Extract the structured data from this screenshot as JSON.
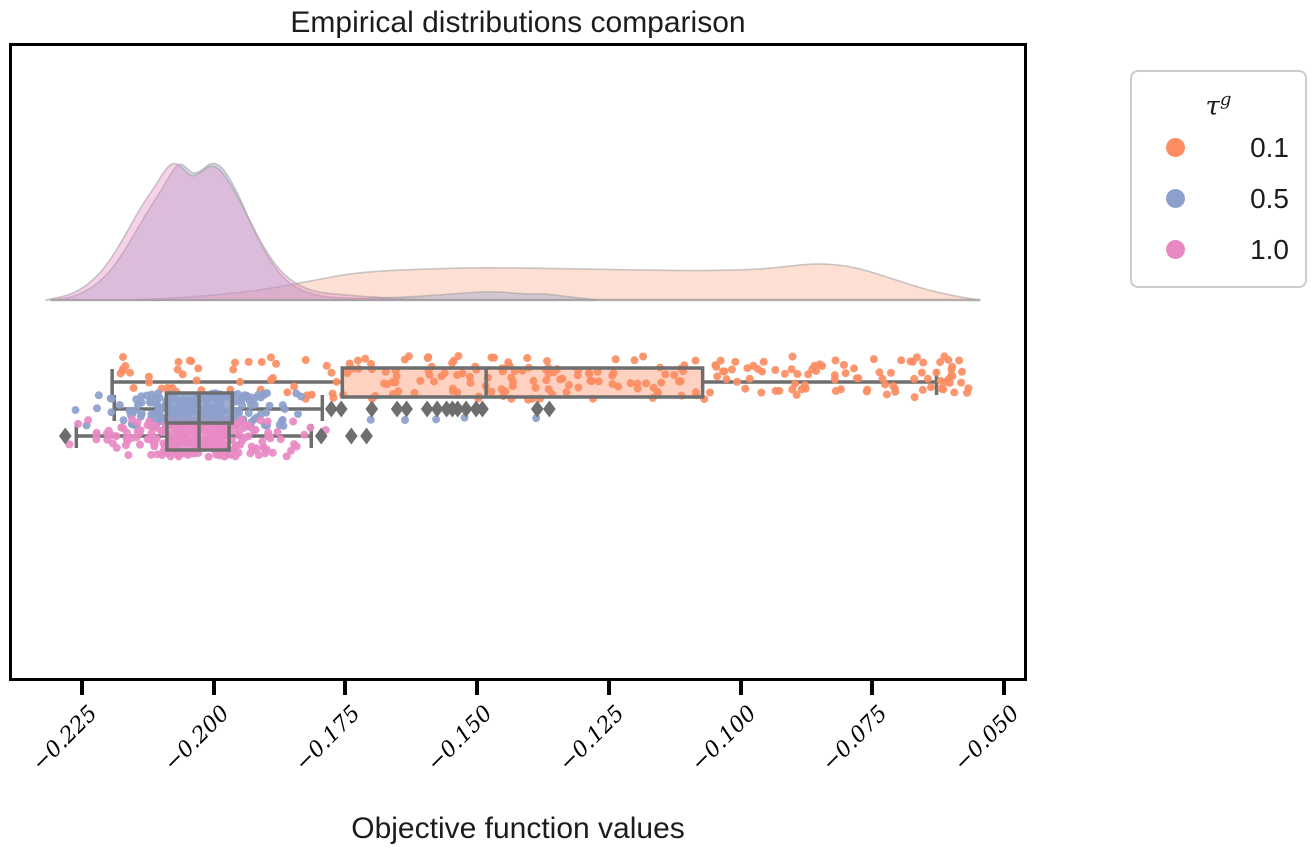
{
  "figure": {
    "title": "Empirical distributions comparison",
    "xlabel": "Objective function values"
  },
  "legend": {
    "title_base": "τ",
    "title_sup": "g",
    "items": [
      {
        "label": "0.1",
        "color": "#FC8D62"
      },
      {
        "label": "0.5",
        "color": "#8DA0CB"
      },
      {
        "label": "1.0",
        "color": "#E78AC3"
      }
    ]
  },
  "chart_data": {
    "type": "raincloud (kde + box + strip)",
    "title": "Empirical distributions comparison",
    "xlabel": "Objective function values",
    "xlim": [
      -0.2385,
      -0.046
    ],
    "x_ticks": [
      -0.225,
      -0.2,
      -0.175,
      -0.15,
      -0.125,
      -0.1,
      -0.075,
      -0.05
    ],
    "x_tick_labels": [
      "−0.225",
      "−0.200",
      "−0.175",
      "−0.150",
      "−0.125",
      "−0.100",
      "−0.075",
      "−0.050"
    ],
    "grid": false,
    "legend_position": "outside-right",
    "flier_marker": "diamond",
    "styles": {
      "box_edge_color": "#6e6e6e",
      "flier_color": "#6e6e6e",
      "kde_stroke_color": "#9e9e9e",
      "baseline_color": "#bdbdbd",
      "frame_color": "#000000"
    },
    "baseline_extent": [
      -0.231,
      -0.0545
    ],
    "groups": [
      {
        "name": "0.1",
        "color": "#FC8D62",
        "kde_fill": "rgba(252,141,98,0.28)",
        "box_fill": "rgba(252,141,98,0.40)",
        "box": {
          "whislo": -0.2193,
          "q1": -0.1756,
          "med": -0.1483,
          "q3": -0.1072,
          "whishi": -0.0628,
          "fliers": []
        },
        "kde": [
          [
            -0.215,
            0
          ],
          [
            -0.21,
            0.01
          ],
          [
            -0.205,
            0.02
          ],
          [
            -0.2,
            0.035
          ],
          [
            -0.195,
            0.055
          ],
          [
            -0.19,
            0.08
          ],
          [
            -0.185,
            0.115
          ],
          [
            -0.18,
            0.15
          ],
          [
            -0.176,
            0.18
          ],
          [
            -0.172,
            0.2
          ],
          [
            -0.167,
            0.215
          ],
          [
            -0.16,
            0.225
          ],
          [
            -0.152,
            0.235
          ],
          [
            -0.144,
            0.235
          ],
          [
            -0.136,
            0.23
          ],
          [
            -0.128,
            0.225
          ],
          [
            -0.12,
            0.22
          ],
          [
            -0.112,
            0.215
          ],
          [
            -0.104,
            0.215
          ],
          [
            -0.096,
            0.225
          ],
          [
            -0.09,
            0.25
          ],
          [
            -0.086,
            0.265
          ],
          [
            -0.082,
            0.26
          ],
          [
            -0.078,
            0.235
          ],
          [
            -0.074,
            0.19
          ],
          [
            -0.07,
            0.14
          ],
          [
            -0.066,
            0.09
          ],
          [
            -0.062,
            0.05
          ],
          [
            -0.058,
            0.02
          ],
          [
            -0.0545,
            0
          ]
        ],
        "strip": {
          "count": 260,
          "segments": [
            {
              "lo": -0.2185,
              "hi": -0.176,
              "w": 0.18
            },
            {
              "lo": -0.176,
              "hi": -0.107,
              "w": 0.5
            },
            {
              "lo": -0.107,
              "hi": -0.0565,
              "w": 0.32
            }
          ],
          "extras": []
        }
      },
      {
        "name": "0.5",
        "color": "#8DA0CB",
        "kde_fill": "rgba(141,160,203,0.38)",
        "box_fill": "rgba(141,160,203,0.85)",
        "box": {
          "whislo": -0.2189,
          "q1": -0.209,
          "med": -0.2028,
          "q3": -0.1965,
          "whishi": -0.1794,
          "fliers": [
            -0.1777,
            -0.1758,
            -0.17,
            -0.1652,
            -0.1634,
            -0.1595,
            -0.1576,
            -0.1558,
            -0.1547,
            -0.1537,
            -0.1521,
            -0.1502,
            -0.149,
            -0.1386,
            -0.1363
          ]
        },
        "kde": [
          [
            -0.231,
            0
          ],
          [
            -0.228,
            0.01
          ],
          [
            -0.225,
            0.05
          ],
          [
            -0.222,
            0.12
          ],
          [
            -0.219,
            0.24
          ],
          [
            -0.216,
            0.42
          ],
          [
            -0.213,
            0.62
          ],
          [
            -0.21,
            0.8
          ],
          [
            -0.2085,
            0.9
          ],
          [
            -0.2073,
            0.97
          ],
          [
            -0.2063,
            1
          ],
          [
            -0.205,
            0.96
          ],
          [
            -0.204,
            0.92
          ],
          [
            -0.2025,
            0.94
          ],
          [
            -0.201,
            0.99
          ],
          [
            -0.1998,
            1
          ],
          [
            -0.1985,
            0.97
          ],
          [
            -0.197,
            0.89
          ],
          [
            -0.195,
            0.74
          ],
          [
            -0.193,
            0.56
          ],
          [
            -0.191,
            0.4
          ],
          [
            -0.189,
            0.27
          ],
          [
            -0.187,
            0.17
          ],
          [
            -0.185,
            0.105
          ],
          [
            -0.183,
            0.065
          ],
          [
            -0.181,
            0.04
          ],
          [
            -0.179,
            0.025
          ],
          [
            -0.176,
            0.015
          ],
          [
            -0.172,
            0.012
          ],
          [
            -0.168,
            0.015
          ],
          [
            -0.162,
            0.025
          ],
          [
            -0.156,
            0.04
          ],
          [
            -0.151,
            0.055
          ],
          [
            -0.147,
            0.062
          ],
          [
            -0.143,
            0.05
          ],
          [
            -0.14,
            0.042
          ],
          [
            -0.138,
            0.046
          ],
          [
            -0.136,
            0.04
          ],
          [
            -0.133,
            0.025
          ],
          [
            -0.13,
            0.012
          ],
          [
            -0.127,
            0
          ]
        ],
        "strip": {
          "count": 205,
          "mean": -0.2025,
          "sd": 0.0088,
          "clip": [
            -0.2285,
            -0.179
          ],
          "extras": [
            -0.1702,
            -0.1637,
            -0.1578,
            -0.1524,
            -0.1388
          ]
        }
      },
      {
        "name": "1.0",
        "color": "#E78AC3",
        "kde_fill": "rgba(231,138,195,0.38)",
        "box_fill": "rgba(231,138,195,0.85)",
        "box": {
          "whislo": -0.2261,
          "q1": -0.2089,
          "med": -0.2028,
          "q3": -0.1971,
          "whishi": -0.1815,
          "fliers": [
            -0.2282,
            -0.1796,
            -0.1739,
            -0.171
          ]
        },
        "kde": [
          [
            -0.232,
            0
          ],
          [
            -0.229,
            0.02
          ],
          [
            -0.226,
            0.06
          ],
          [
            -0.223,
            0.14
          ],
          [
            -0.22,
            0.27
          ],
          [
            -0.217,
            0.46
          ],
          [
            -0.214,
            0.67
          ],
          [
            -0.211,
            0.84
          ],
          [
            -0.2096,
            0.93
          ],
          [
            -0.2083,
            0.99
          ],
          [
            -0.2071,
            1
          ],
          [
            -0.2056,
            0.95
          ],
          [
            -0.2043,
            0.9
          ],
          [
            -0.2028,
            0.92
          ],
          [
            -0.2013,
            0.97
          ],
          [
            -0.2,
            0.98
          ],
          [
            -0.1988,
            0.95
          ],
          [
            -0.1972,
            0.87
          ],
          [
            -0.195,
            0.72
          ],
          [
            -0.1928,
            0.55
          ],
          [
            -0.1906,
            0.39
          ],
          [
            -0.1884,
            0.26
          ],
          [
            -0.1862,
            0.17
          ],
          [
            -0.184,
            0.11
          ],
          [
            -0.1818,
            0.075
          ],
          [
            -0.1796,
            0.055
          ],
          [
            -0.1774,
            0.045
          ],
          [
            -0.1752,
            0.038
          ],
          [
            -0.173,
            0.03
          ],
          [
            -0.17,
            0.022
          ],
          [
            -0.167,
            0.015
          ],
          [
            -0.164,
            0.008
          ],
          [
            -0.161,
            0.003
          ],
          [
            -0.158,
            0
          ]
        ],
        "strip": {
          "count": 215,
          "mean": -0.2028,
          "sd": 0.0088,
          "clip": [
            -0.2295,
            -0.1785
          ],
          "extras": []
        }
      }
    ]
  }
}
